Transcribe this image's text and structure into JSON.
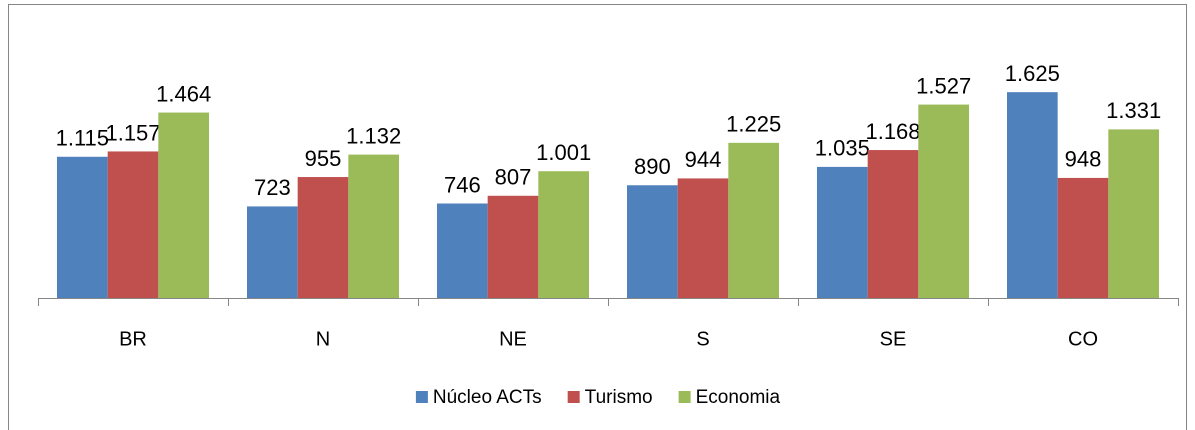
{
  "chart_data": {
    "type": "bar",
    "categories": [
      "BR",
      "N",
      "NE",
      "S",
      "SE",
      "CO"
    ],
    "series": [
      {
        "name": "Núcleo ACTs",
        "color": "#4f81bd",
        "values": [
          1115,
          723,
          746,
          890,
          1035,
          1625
        ],
        "value_labels": [
          "1.115",
          "723",
          "746",
          "890",
          "1.035",
          "1.625"
        ]
      },
      {
        "name": "Turismo",
        "color": "#c0504d",
        "values": [
          1157,
          955,
          807,
          944,
          1168,
          948
        ],
        "value_labels": [
          "1.157",
          "955",
          "807",
          "944",
          "1.168",
          "948"
        ]
      },
      {
        "name": "Economia",
        "color": "#9bbb59",
        "values": [
          1464,
          1132,
          1001,
          1225,
          1527,
          1331
        ],
        "value_labels": [
          "1.464",
          "1.132",
          "1.001",
          "1.225",
          "1.527",
          "1.331"
        ]
      }
    ],
    "ylim": [
      0,
      1800
    ],
    "legend": "bottom"
  }
}
